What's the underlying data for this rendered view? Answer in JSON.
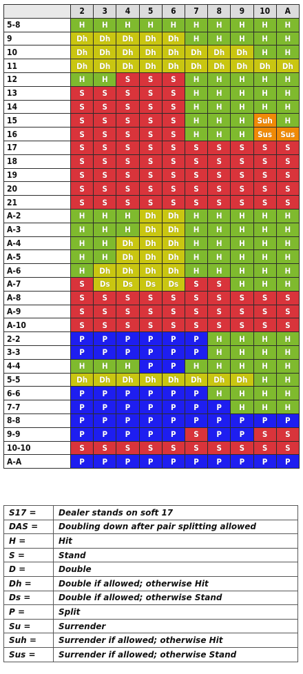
{
  "colors": {
    "H": "#7fba2e",
    "Dh": "#c9c611",
    "Ds": "#c9c611",
    "S": "#d9343b",
    "P": "#1e1ef0",
    "Suh": "#f08a07",
    "Sus": "#f08a07"
  },
  "dealer_cards": [
    "2",
    "3",
    "4",
    "5",
    "6",
    "7",
    "8",
    "9",
    "10",
    "A"
  ],
  "hands": [
    {
      "label": "5-8",
      "actions": [
        "H",
        "H",
        "H",
        "H",
        "H",
        "H",
        "H",
        "H",
        "H",
        "H"
      ]
    },
    {
      "label": "9",
      "actions": [
        "Dh",
        "Dh",
        "Dh",
        "Dh",
        "Dh",
        "H",
        "H",
        "H",
        "H",
        "H"
      ]
    },
    {
      "label": "10",
      "actions": [
        "Dh",
        "Dh",
        "Dh",
        "Dh",
        "Dh",
        "Dh",
        "Dh",
        "Dh",
        "H",
        "H"
      ]
    },
    {
      "label": "11",
      "actions": [
        "Dh",
        "Dh",
        "Dh",
        "Dh",
        "Dh",
        "Dh",
        "Dh",
        "Dh",
        "Dh",
        "Dh"
      ]
    },
    {
      "label": "12",
      "actions": [
        "H",
        "H",
        "S",
        "S",
        "S",
        "H",
        "H",
        "H",
        "H",
        "H"
      ]
    },
    {
      "label": "13",
      "actions": [
        "S",
        "S",
        "S",
        "S",
        "S",
        "H",
        "H",
        "H",
        "H",
        "H"
      ]
    },
    {
      "label": "14",
      "actions": [
        "S",
        "S",
        "S",
        "S",
        "S",
        "H",
        "H",
        "H",
        "H",
        "H"
      ]
    },
    {
      "label": "15",
      "actions": [
        "S",
        "S",
        "S",
        "S",
        "S",
        "H",
        "H",
        "H",
        "Suh",
        "H"
      ]
    },
    {
      "label": "16",
      "actions": [
        "S",
        "S",
        "S",
        "S",
        "S",
        "H",
        "H",
        "H",
        "Sus",
        "Sus"
      ]
    },
    {
      "label": "17",
      "actions": [
        "S",
        "S",
        "S",
        "S",
        "S",
        "S",
        "S",
        "S",
        "S",
        "S"
      ]
    },
    {
      "label": "18",
      "actions": [
        "S",
        "S",
        "S",
        "S",
        "S",
        "S",
        "S",
        "S",
        "S",
        "S"
      ]
    },
    {
      "label": "19",
      "actions": [
        "S",
        "S",
        "S",
        "S",
        "S",
        "S",
        "S",
        "S",
        "S",
        "S"
      ]
    },
    {
      "label": "20",
      "actions": [
        "S",
        "S",
        "S",
        "S",
        "S",
        "S",
        "S",
        "S",
        "S",
        "S"
      ]
    },
    {
      "label": "21",
      "actions": [
        "S",
        "S",
        "S",
        "S",
        "S",
        "S",
        "S",
        "S",
        "S",
        "S"
      ]
    },
    {
      "label": "A-2",
      "actions": [
        "H",
        "H",
        "H",
        "Dh",
        "Dh",
        "H",
        "H",
        "H",
        "H",
        "H"
      ]
    },
    {
      "label": "A-3",
      "actions": [
        "H",
        "H",
        "H",
        "Dh",
        "Dh",
        "H",
        "H",
        "H",
        "H",
        "H"
      ]
    },
    {
      "label": "A-4",
      "actions": [
        "H",
        "H",
        "Dh",
        "Dh",
        "Dh",
        "H",
        "H",
        "H",
        "H",
        "H"
      ]
    },
    {
      "label": "A-5",
      "actions": [
        "H",
        "H",
        "Dh",
        "Dh",
        "Dh",
        "H",
        "H",
        "H",
        "H",
        "H"
      ]
    },
    {
      "label": "A-6",
      "actions": [
        "H",
        "Dh",
        "Dh",
        "Dh",
        "Dh",
        "H",
        "H",
        "H",
        "H",
        "H"
      ]
    },
    {
      "label": "A-7",
      "actions": [
        "S",
        "Ds",
        "Ds",
        "Ds",
        "Ds",
        "S",
        "S",
        "H",
        "H",
        "H"
      ]
    },
    {
      "label": "A-8",
      "actions": [
        "S",
        "S",
        "S",
        "S",
        "S",
        "S",
        "S",
        "S",
        "S",
        "S"
      ]
    },
    {
      "label": "A-9",
      "actions": [
        "S",
        "S",
        "S",
        "S",
        "S",
        "S",
        "S",
        "S",
        "S",
        "S"
      ]
    },
    {
      "label": "A-10",
      "actions": [
        "S",
        "S",
        "S",
        "S",
        "S",
        "S",
        "S",
        "S",
        "S",
        "S"
      ]
    },
    {
      "label": "2-2",
      "actions": [
        "P",
        "P",
        "P",
        "P",
        "P",
        "P",
        "H",
        "H",
        "H",
        "H"
      ]
    },
    {
      "label": "3-3",
      "actions": [
        "P",
        "P",
        "P",
        "P",
        "P",
        "P",
        "H",
        "H",
        "H",
        "H"
      ]
    },
    {
      "label": "4-4",
      "actions": [
        "H",
        "H",
        "H",
        "P",
        "P",
        "H",
        "H",
        "H",
        "H",
        "H"
      ]
    },
    {
      "label": "5-5",
      "actions": [
        "Dh",
        "Dh",
        "Dh",
        "Dh",
        "Dh",
        "Dh",
        "Dh",
        "Dh",
        "H",
        "H"
      ]
    },
    {
      "label": "6-6",
      "actions": [
        "P",
        "P",
        "P",
        "P",
        "P",
        "P",
        "H",
        "H",
        "H",
        "H"
      ]
    },
    {
      "label": "7-7",
      "actions": [
        "P",
        "P",
        "P",
        "P",
        "P",
        "P",
        "P",
        "H",
        "H",
        "H"
      ]
    },
    {
      "label": "8-8",
      "actions": [
        "P",
        "P",
        "P",
        "P",
        "P",
        "P",
        "P",
        "P",
        "P",
        "P"
      ]
    },
    {
      "label": "9-9",
      "actions": [
        "P",
        "P",
        "P",
        "P",
        "P",
        "S",
        "P",
        "P",
        "S",
        "S"
      ]
    },
    {
      "label": "10-10",
      "actions": [
        "S",
        "S",
        "S",
        "S",
        "S",
        "S",
        "S",
        "S",
        "S",
        "S"
      ]
    },
    {
      "label": "A-A",
      "actions": [
        "P",
        "P",
        "P",
        "P",
        "P",
        "P",
        "P",
        "P",
        "P",
        "P"
      ]
    }
  ],
  "legend": [
    {
      "key": "S17 =",
      "desc": "Dealer stands on soft 17"
    },
    {
      "key": "DAS =",
      "desc": "Doubling down after pair splitting allowed"
    },
    {
      "key": "H =",
      "desc": "Hit"
    },
    {
      "key": "S =",
      "desc": "Stand"
    },
    {
      "key": "D =",
      "desc": "Double"
    },
    {
      "key": "Dh =",
      "desc": "Double if allowed; otherwise Hit"
    },
    {
      "key": "Ds =",
      "desc": "Double if allowed; otherwise Stand"
    },
    {
      "key": "P =",
      "desc": "Split"
    },
    {
      "key": "Su =",
      "desc": "Surrender"
    },
    {
      "key": "Suh =",
      "desc": "Surrender if allowed; otherwise Hit"
    },
    {
      "key": "Sus =",
      "desc": "Surrender if allowed; otherwise Stand"
    }
  ]
}
